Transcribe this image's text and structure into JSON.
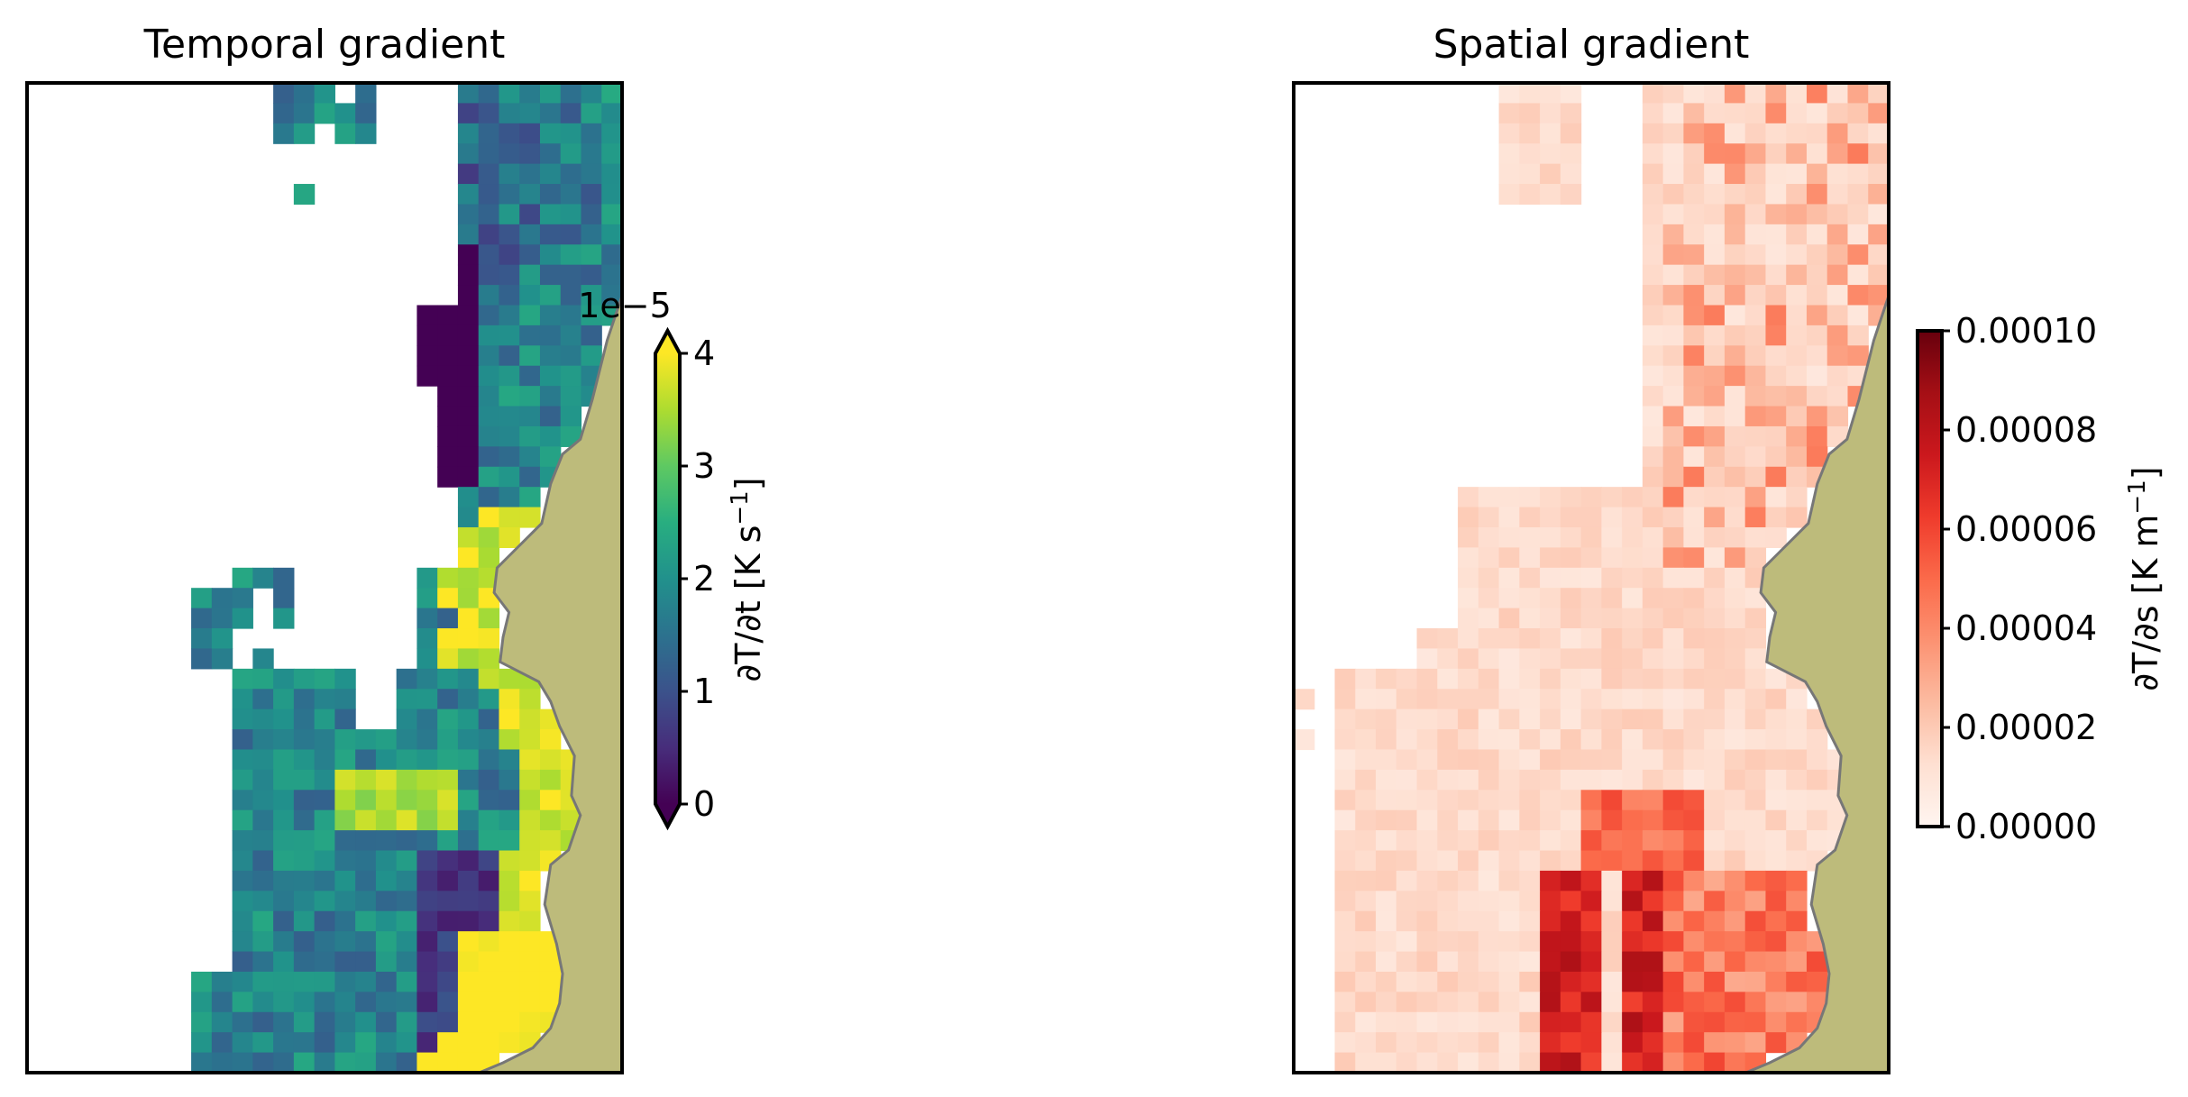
{
  "chart_data": [
    {
      "type": "heatmap",
      "title": "Temporal gradient",
      "colormap": "viridis",
      "colorbar": {
        "label": "∂T/∂t [K s⁻¹]",
        "label_parts": [
          "∂T/∂t [K s",
          "−1",
          "]"
        ],
        "offset_text": "1e−5",
        "ticks": [
          "0",
          "1",
          "2",
          "3",
          "4"
        ],
        "tick_values": [
          0,
          1,
          2,
          3,
          4
        ],
        "range": [
          0,
          4
        ],
        "scale_factor": 1e-05,
        "extend": "both"
      },
      "grid": {
        "rows": 49,
        "cols": 29
      },
      "land_color": "#bdbb7b",
      "coast_color": "#777777",
      "values_note": "values in units of 1e-5 K s⁻¹"
    },
    {
      "type": "heatmap",
      "title": "Spatial gradient",
      "colormap": "Reds",
      "colorbar": {
        "label": "∂T/∂s [K m⁻¹]",
        "label_parts": [
          "∂T/∂s [K m",
          "−1",
          "]"
        ],
        "ticks": [
          "0.00000",
          "0.00002",
          "0.00004",
          "0.00006",
          "0.00008",
          "0.00010"
        ],
        "tick_values": [
          0,
          2e-05,
          4e-05,
          6e-05,
          8e-05,
          0.0001
        ],
        "range": [
          0,
          0.0001
        ],
        "extend": "neither"
      },
      "grid": {
        "rows": 49,
        "cols": 29
      },
      "land_color": "#bdbb7b",
      "coast_color": "#777777"
    }
  ]
}
